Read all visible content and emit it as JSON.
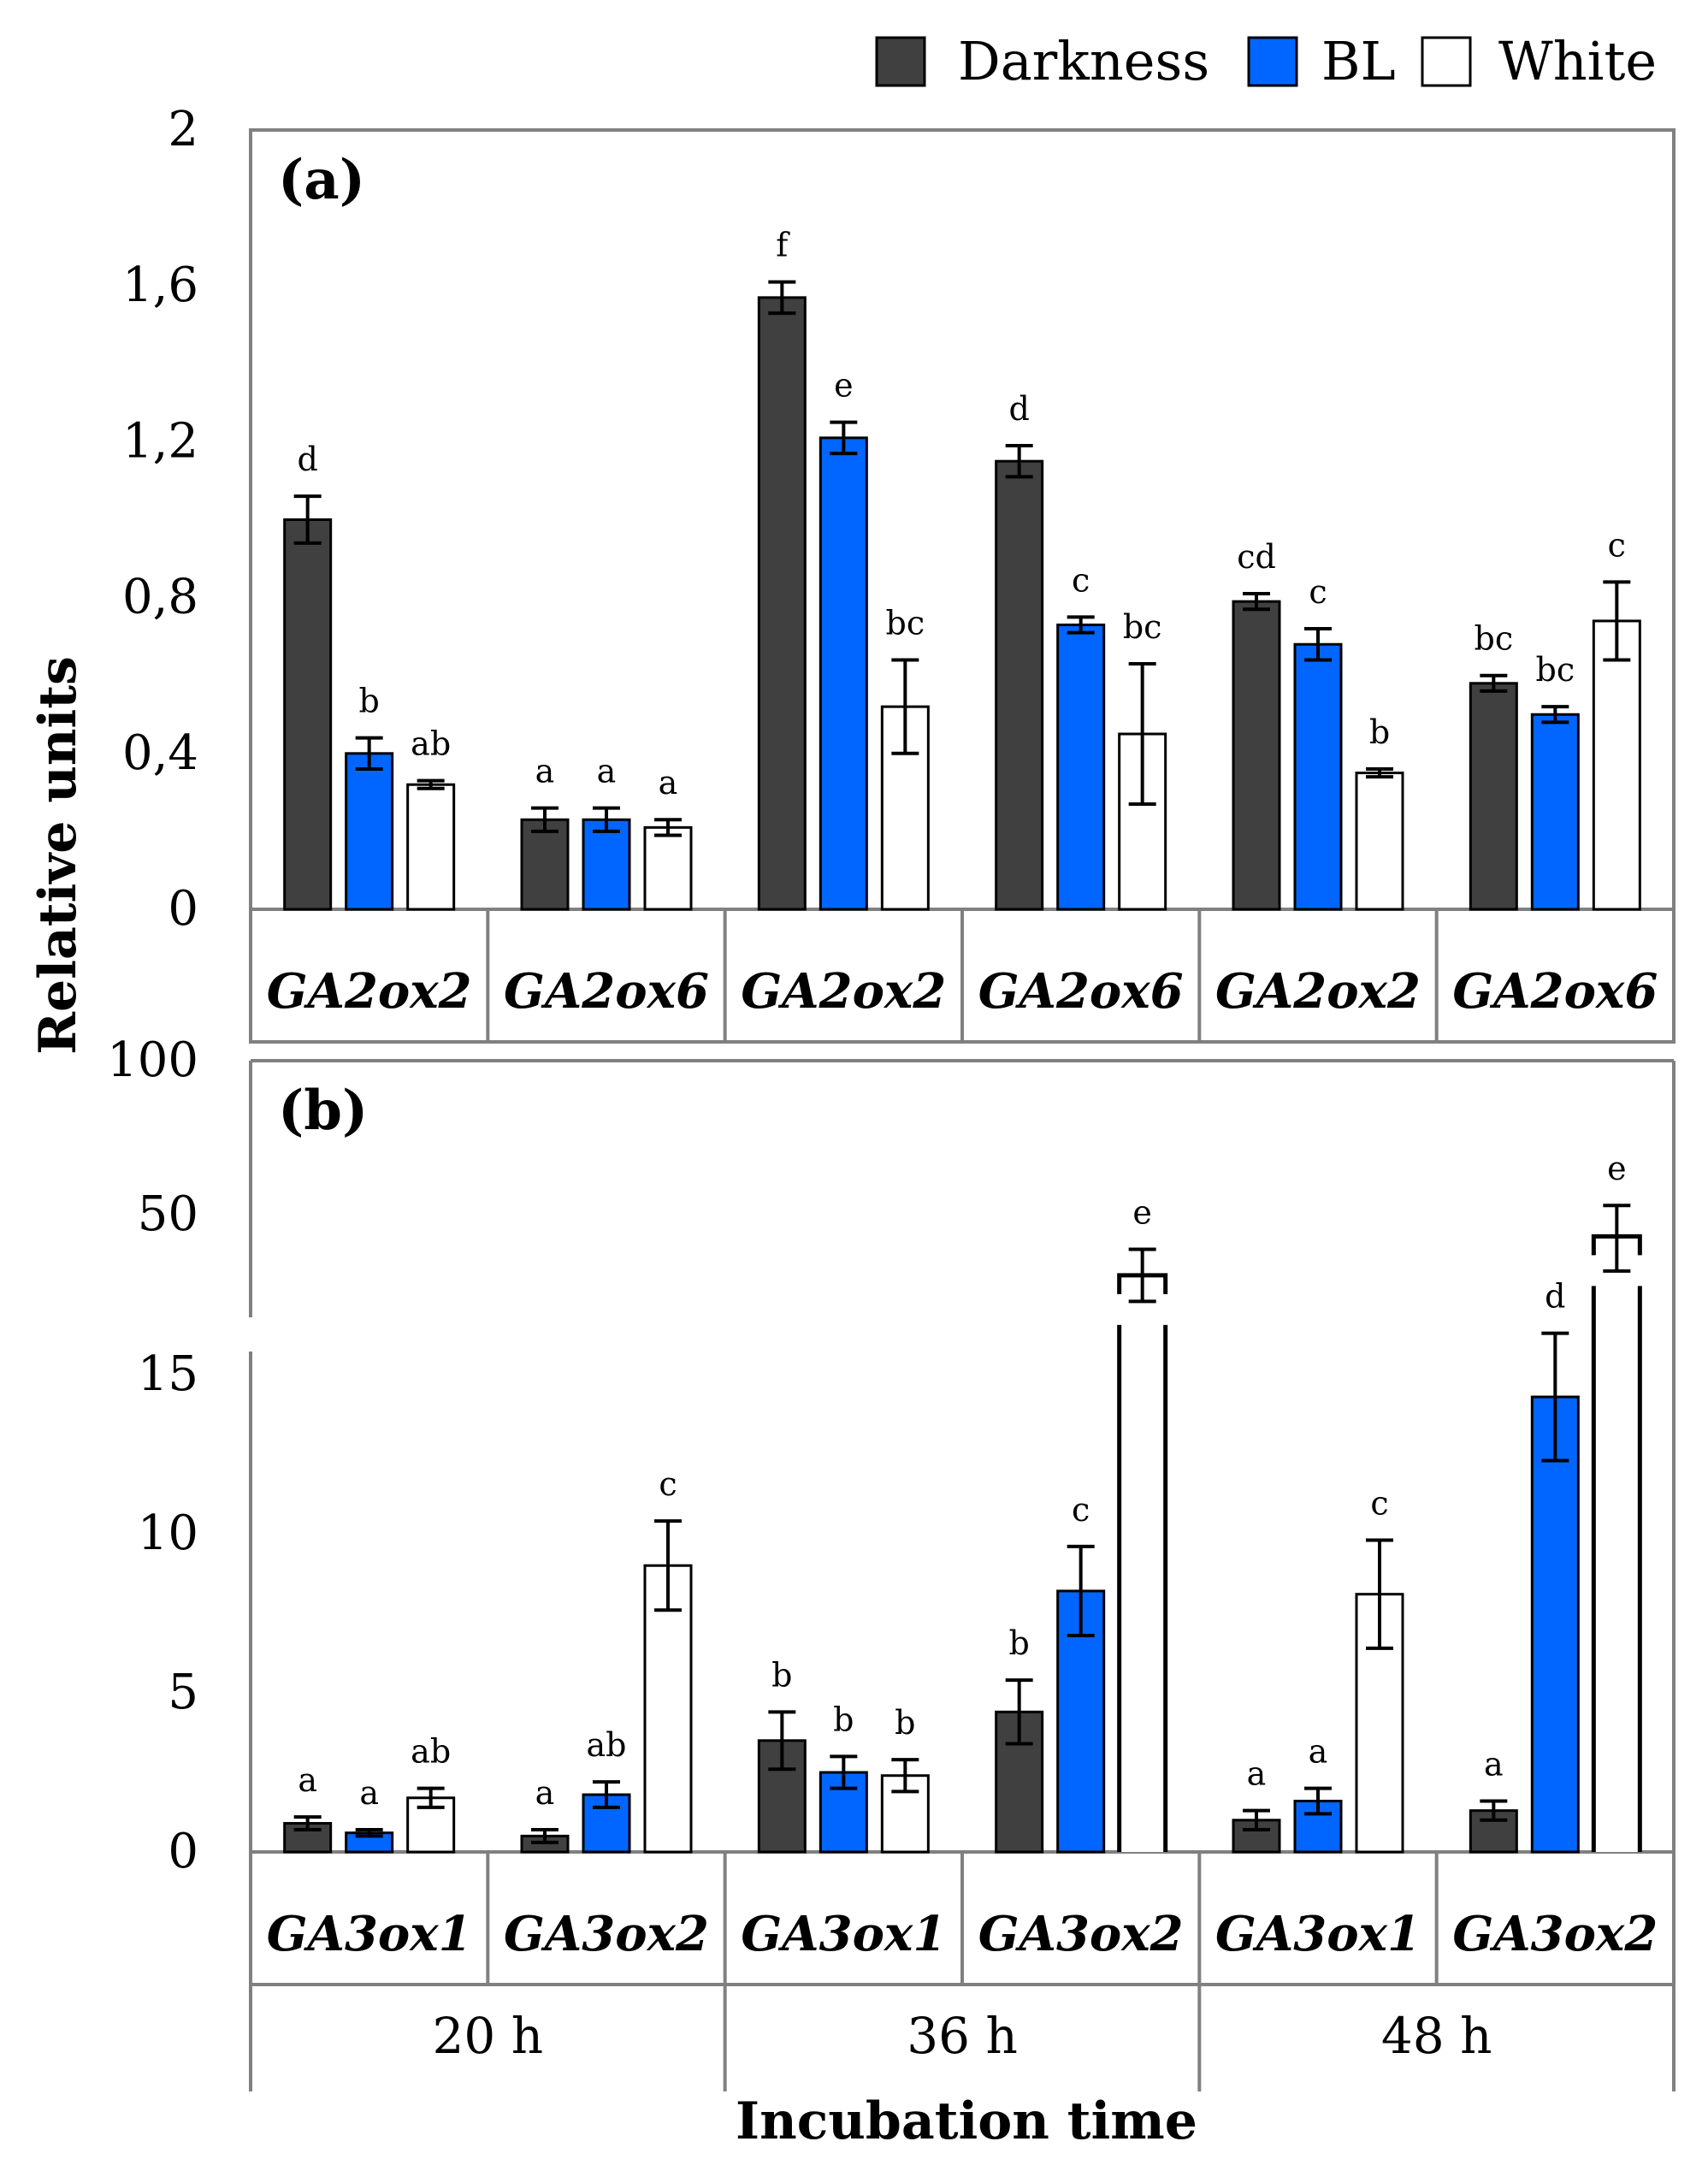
{
  "colors": {
    "Darkness": "#404040",
    "BL": "#0066ff",
    "White": "#ffffff",
    "frame": "#808080",
    "bar_edge": "#000000"
  },
  "legend": [
    {
      "label": "Darkness",
      "color": "#404040",
      "text_color": "#000000"
    },
    {
      "label": "BL",
      "color": "#0066ff",
      "text_color": "#1a66ff"
    },
    {
      "label": "White",
      "color": "#ffffff",
      "text_color": "#000000"
    }
  ],
  "chart_data": [
    {
      "type": "bar",
      "panel": "(a)",
      "ylabel": "Relative units",
      "ylim": [
        0,
        2
      ],
      "yticks": [
        "0",
        "0,4",
        "0,8",
        "1,2",
        "1,6",
        "2"
      ],
      "yticks_values": [
        0,
        0.4,
        0.8,
        1.2,
        1.6,
        2
      ],
      "groups": [
        {
          "gene": "GA2ox2",
          "time": "20 h",
          "bars": [
            {
              "series": "Darkness",
              "value": 1.0,
              "err": 0.06,
              "sig": "d"
            },
            {
              "series": "BL",
              "value": 0.4,
              "err": 0.04,
              "sig": "b"
            },
            {
              "series": "White",
              "value": 0.32,
              "err": 0.01,
              "sig": "ab"
            }
          ]
        },
        {
          "gene": "GA2ox6",
          "time": "20 h",
          "bars": [
            {
              "series": "Darkness",
              "value": 0.23,
              "err": 0.03,
              "sig": "a"
            },
            {
              "series": "BL",
              "value": 0.23,
              "err": 0.03,
              "sig": "a"
            },
            {
              "series": "White",
              "value": 0.21,
              "err": 0.02,
              "sig": "a"
            }
          ]
        },
        {
          "gene": "GA2ox2",
          "time": "36 h",
          "bars": [
            {
              "series": "Darkness",
              "value": 1.57,
              "err": 0.04,
              "sig": "f"
            },
            {
              "series": "BL",
              "value": 1.21,
              "err": 0.04,
              "sig": "e"
            },
            {
              "series": "White",
              "value": 0.52,
              "err": 0.12,
              "sig": "bc"
            }
          ]
        },
        {
          "gene": "GA2ox6",
          "time": "36 h",
          "bars": [
            {
              "series": "Darkness",
              "value": 1.15,
              "err": 0.04,
              "sig": "d"
            },
            {
              "series": "BL",
              "value": 0.73,
              "err": 0.02,
              "sig": "c"
            },
            {
              "series": "White",
              "value": 0.45,
              "err": 0.18,
              "sig": "bc"
            }
          ]
        },
        {
          "gene": "GA2ox2",
          "time": "48 h",
          "bars": [
            {
              "series": "Darkness",
              "value": 0.79,
              "err": 0.02,
              "sig": "cd"
            },
            {
              "series": "BL",
              "value": 0.68,
              "err": 0.04,
              "sig": "c"
            },
            {
              "series": "White",
              "value": 0.35,
              "err": 0.01,
              "sig": "b"
            }
          ]
        },
        {
          "gene": "GA2ox6",
          "time": "48 h",
          "bars": [
            {
              "series": "Darkness",
              "value": 0.58,
              "err": 0.02,
              "sig": "bc"
            },
            {
              "series": "BL",
              "value": 0.5,
              "err": 0.02,
              "sig": "bc"
            },
            {
              "series": "White",
              "value": 0.74,
              "err": 0.1,
              "sig": "c"
            }
          ]
        }
      ]
    },
    {
      "type": "bar",
      "panel": "(b)",
      "ylabel": "Relative units",
      "xlabel": "Incubation time",
      "ylim": [
        0,
        100
      ],
      "yaxis_break": {
        "lower_max": 17.5,
        "upper_min": 20,
        "upper_max": 100
      },
      "yticks": [
        "0",
        "5",
        "10",
        "15",
        "50",
        "100"
      ],
      "yticks_values": [
        0,
        5,
        10,
        15,
        50,
        100
      ],
      "times": [
        "20 h",
        "36 h",
        "48 h"
      ],
      "groups": [
        {
          "gene": "GA3ox1",
          "time": "20 h",
          "bars": [
            {
              "series": "Darkness",
              "value": 0.9,
              "err": 0.2,
              "sig": "a"
            },
            {
              "series": "BL",
              "value": 0.6,
              "err": 0.1,
              "sig": "a"
            },
            {
              "series": "White",
              "value": 1.7,
              "err": 0.3,
              "sig": "ab"
            }
          ]
        },
        {
          "gene": "GA3ox2",
          "time": "20 h",
          "bars": [
            {
              "series": "Darkness",
              "value": 0.5,
              "err": 0.2,
              "sig": "a"
            },
            {
              "series": "BL",
              "value": 1.8,
              "err": 0.4,
              "sig": "ab"
            },
            {
              "series": "White",
              "value": 9.0,
              "err": 1.4,
              "sig": "c"
            }
          ]
        },
        {
          "gene": "GA3ox1",
          "time": "36 h",
          "bars": [
            {
              "series": "Darkness",
              "value": 3.5,
              "err": 0.9,
              "sig": "b"
            },
            {
              "series": "BL",
              "value": 2.5,
              "err": 0.5,
              "sig": "b"
            },
            {
              "series": "White",
              "value": 2.4,
              "err": 0.5,
              "sig": "b"
            }
          ]
        },
        {
          "gene": "GA3ox2",
          "time": "36 h",
          "bars": [
            {
              "series": "Darkness",
              "value": 4.4,
              "err": 1.0,
              "sig": "b"
            },
            {
              "series": "BL",
              "value": 8.2,
              "err": 1.4,
              "sig": "c"
            },
            {
              "series": "White",
              "value": 36,
              "err": 6,
              "sig": "e"
            }
          ]
        },
        {
          "gene": "GA3ox1",
          "time": "48 h",
          "bars": [
            {
              "series": "Darkness",
              "value": 1.0,
              "err": 0.3,
              "sig": "a"
            },
            {
              "series": "BL",
              "value": 1.6,
              "err": 0.4,
              "sig": "a"
            },
            {
              "series": "White",
              "value": 8.1,
              "err": 1.7,
              "sig": "c"
            }
          ]
        },
        {
          "gene": "GA3ox2",
          "time": "48 h",
          "bars": [
            {
              "series": "Darkness",
              "value": 1.3,
              "err": 0.3,
              "sig": "a"
            },
            {
              "series": "BL",
              "value": 14.3,
              "err": 2.0,
              "sig": "d"
            },
            {
              "series": "White",
              "value": 45,
              "err": 8,
              "sig": "e"
            }
          ]
        }
      ]
    }
  ]
}
